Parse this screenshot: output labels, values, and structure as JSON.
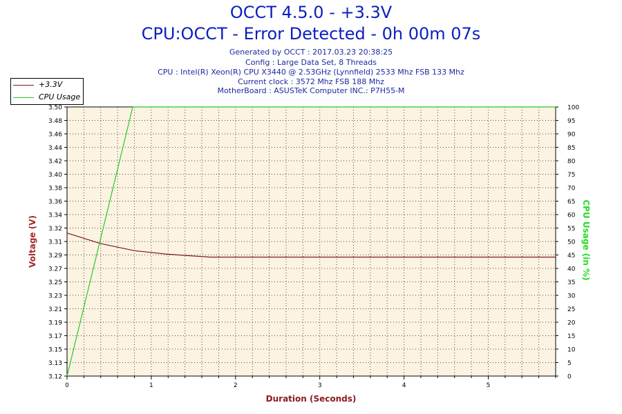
{
  "header": {
    "title": "OCCT 4.5.0 - +3.3V",
    "subtitle": "CPU:OCCT - Error Detected - 0h 00m 07s",
    "info_lines": [
      "Generated by OCCT : 2017.03.23 20:38:25",
      "Config : Large Data Set, 8 Threads",
      "CPU : Intel(R) Xeon(R) CPU X3440 @ 2.53GHz (Lynnfield) 2533 Mhz FSB 133 Mhz",
      "Current clock : 3572 Mhz FSB 188 Mhz",
      "MotherBoard : ASUSTeK Computer INC.: P7H55-M"
    ]
  },
  "colors": {
    "voltage": "#7a1a1a",
    "cpu": "#22cc22",
    "plot_bg": "#fcf3e3",
    "title": "#0b1fbf"
  },
  "chart_data": {
    "type": "line",
    "title": "OCCT 4.5.0 - +3.3V",
    "xlabel": "Duration (Seconds)",
    "ylabel_left": "Voltage (V)",
    "ylabel_right": "CPU Usage (in %)",
    "xlim": [
      0,
      5.8
    ],
    "ylim_left": [
      3.12,
      3.5
    ],
    "ylim_right": [
      0,
      100
    ],
    "x_ticks": [
      "0",
      "1",
      "2",
      "3",
      "4",
      "5"
    ],
    "y_left_ticks": [
      "3.12",
      "3.13",
      "3.15",
      "3.17",
      "3.19",
      "3.21",
      "3.23",
      "3.25",
      "3.27",
      "3.29",
      "3.31",
      "3.32",
      "3.34",
      "3.36",
      "3.38",
      "3.40",
      "3.42",
      "3.44",
      "3.46",
      "3.48",
      "3.50"
    ],
    "y_right_ticks": [
      "0",
      "5",
      "10",
      "15",
      "20",
      "25",
      "30",
      "35",
      "40",
      "45",
      "50",
      "55",
      "60",
      "65",
      "70",
      "75",
      "80",
      "85",
      "90",
      "95",
      "100"
    ],
    "legend_position": "top-left",
    "grid": true,
    "series": [
      {
        "name": "+3.3V",
        "axis": "left",
        "x": [
          0,
          0.4,
          0.8,
          1.2,
          1.7,
          5.8
        ],
        "values": [
          3.322,
          3.307,
          3.297,
          3.292,
          3.288,
          3.288
        ]
      },
      {
        "name": "CPU Usage",
        "axis": "right",
        "x": [
          0,
          0.78,
          5.8
        ],
        "values": [
          0,
          100,
          100
        ]
      }
    ]
  }
}
